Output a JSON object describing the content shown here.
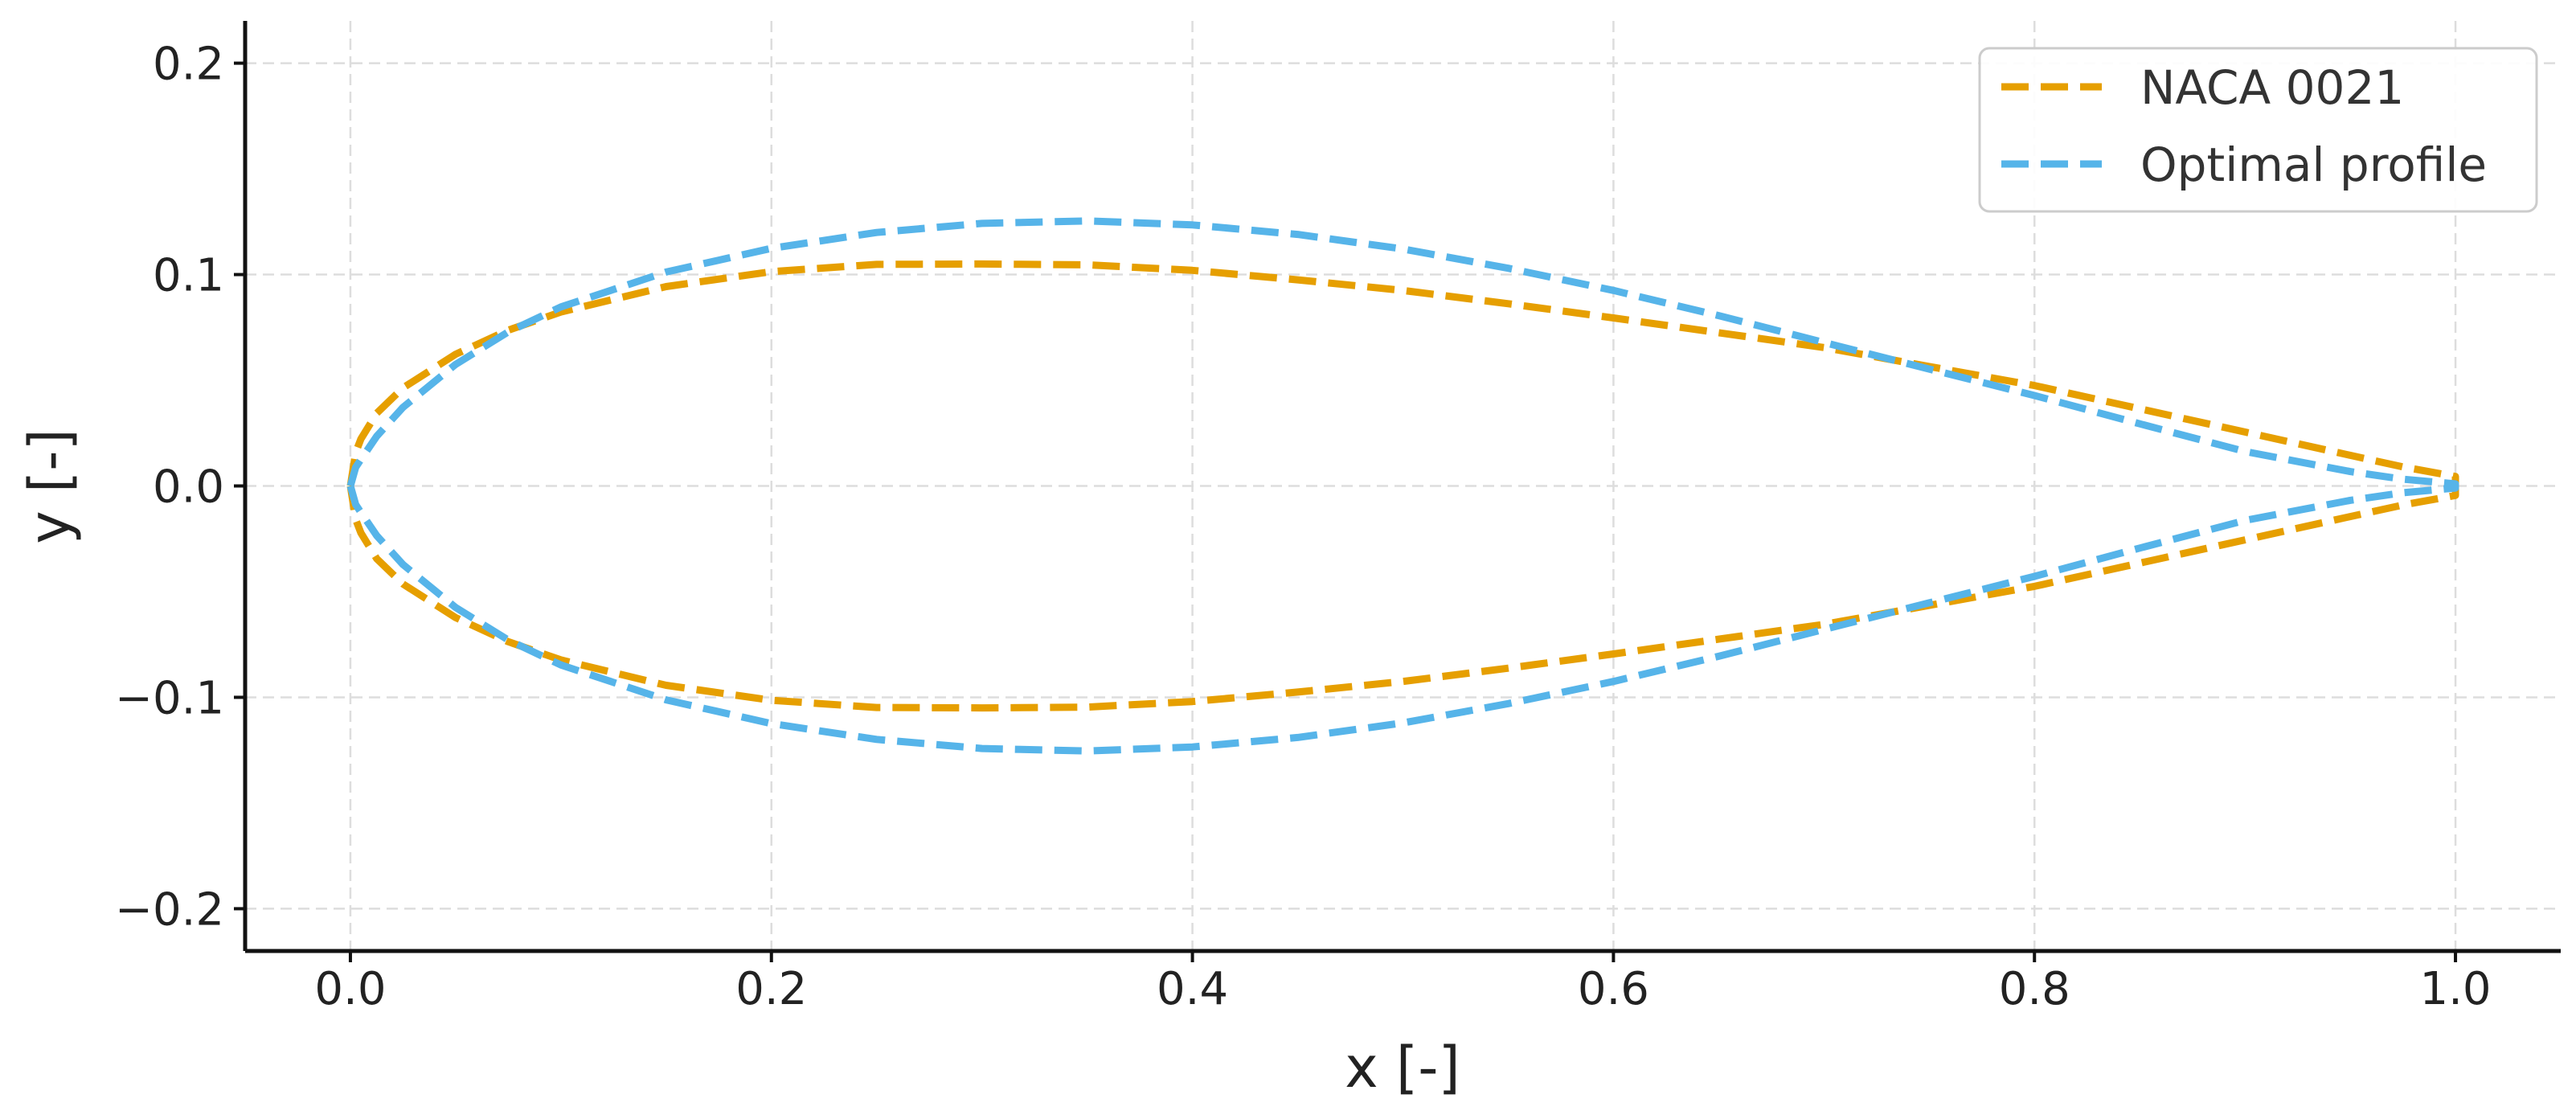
{
  "chart_data": {
    "type": "line",
    "title": "",
    "xlabel": "x [-]",
    "ylabel": "y [-]",
    "xlim": [
      -0.05,
      1.05
    ],
    "ylim": [
      -0.22,
      0.22
    ],
    "xticks": [
      0.0,
      0.2,
      0.4,
      0.6,
      0.8,
      1.0
    ],
    "xtick_labels": [
      "0.0",
      "0.2",
      "0.4",
      "0.6",
      "0.8",
      "1.0"
    ],
    "yticks": [
      -0.2,
      -0.1,
      0.0,
      0.1,
      0.2
    ],
    "ytick_labels": [
      "−0.2",
      "−0.1",
      "0.0",
      "0.1",
      "0.2"
    ],
    "grid": true,
    "legend_position": "top-right",
    "series": [
      {
        "name": "NACA 0021",
        "color": "#E69F00",
        "x": [
          0.0,
          0.0025,
          0.005,
          0.0125,
          0.025,
          0.05,
          0.075,
          0.1,
          0.15,
          0.2,
          0.25,
          0.3,
          0.35,
          0.4,
          0.45,
          0.5,
          0.55,
          0.6,
          0.65,
          0.7,
          0.75,
          0.8,
          0.85,
          0.9,
          0.95,
          0.975,
          1.0,
          1.0,
          0.975,
          0.95,
          0.9,
          0.85,
          0.8,
          0.75,
          0.7,
          0.65,
          0.6,
          0.55,
          0.5,
          0.45,
          0.4,
          0.35,
          0.3,
          0.25,
          0.2,
          0.15,
          0.1,
          0.075,
          0.05,
          0.025,
          0.0125,
          0.005,
          0.0025,
          0.0
        ],
        "y": [
          0.0,
          0.0158,
          0.0222,
          0.0344,
          0.0464,
          0.0623,
          0.0737,
          0.0823,
          0.0943,
          0.1014,
          0.1048,
          0.105,
          0.1046,
          0.102,
          0.0975,
          0.0925,
          0.0862,
          0.0795,
          0.0725,
          0.0655,
          0.0565,
          0.0475,
          0.0365,
          0.0255,
          0.0145,
          0.009,
          0.0045,
          -0.0045,
          -0.009,
          -0.0145,
          -0.0255,
          -0.0365,
          -0.0475,
          -0.0565,
          -0.0655,
          -0.0725,
          -0.0795,
          -0.0862,
          -0.0925,
          -0.0975,
          -0.102,
          -0.1046,
          -0.105,
          -0.1048,
          -0.1014,
          -0.0943,
          -0.0823,
          -0.0737,
          -0.0623,
          -0.0464,
          -0.0344,
          -0.0222,
          -0.0158,
          0.0
        ]
      },
      {
        "name": "Optimal profile",
        "color": "#56B4E9",
        "x": [
          0.0,
          0.0025,
          0.005,
          0.0125,
          0.025,
          0.05,
          0.075,
          0.1,
          0.15,
          0.2,
          0.25,
          0.3,
          0.35,
          0.4,
          0.45,
          0.5,
          0.55,
          0.6,
          0.65,
          0.7,
          0.75,
          0.8,
          0.85,
          0.9,
          0.95,
          0.975,
          1.0,
          1.0,
          0.975,
          0.95,
          0.9,
          0.85,
          0.8,
          0.75,
          0.7,
          0.65,
          0.6,
          0.55,
          0.5,
          0.45,
          0.4,
          0.35,
          0.3,
          0.25,
          0.2,
          0.15,
          0.1,
          0.075,
          0.05,
          0.025,
          0.0125,
          0.005,
          0.0025,
          0.0
        ],
        "y": [
          0.0,
          0.0088,
          0.0125,
          0.0235,
          0.0372,
          0.0575,
          0.0729,
          0.0847,
          0.1012,
          0.1124,
          0.1199,
          0.1242,
          0.1254,
          0.1235,
          0.119,
          0.1121,
          0.103,
          0.0925,
          0.0806,
          0.0679,
          0.0553,
          0.0428,
          0.0294,
          0.0163,
          0.0068,
          0.0032,
          0.001,
          -0.001,
          -0.0032,
          -0.0068,
          -0.0163,
          -0.0294,
          -0.0428,
          -0.0553,
          -0.0679,
          -0.0806,
          -0.0925,
          -0.103,
          -0.1121,
          -0.119,
          -0.1235,
          -0.1254,
          -0.1242,
          -0.1199,
          -0.1124,
          -0.1012,
          -0.0847,
          -0.0729,
          -0.0575,
          -0.0372,
          -0.0235,
          -0.0125,
          -0.0088,
          0.0
        ]
      }
    ]
  }
}
